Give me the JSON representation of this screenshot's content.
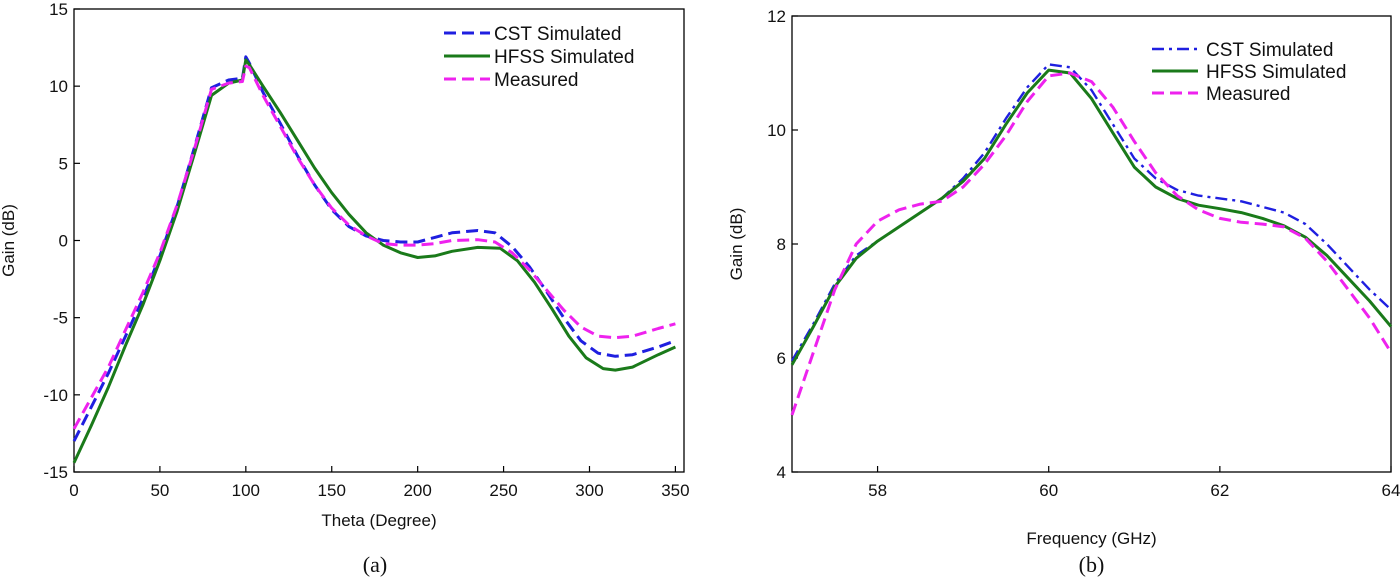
{
  "chart_data": [
    {
      "type": "line",
      "caption": "(a)",
      "xlabel": "Theta (Degree)",
      "ylabel": "Gain (dB)",
      "xlim": [
        0,
        355
      ],
      "ylim": [
        -15,
        15
      ],
      "xticks": [
        0,
        50,
        100,
        150,
        200,
        250,
        300,
        350
      ],
      "yticks": [
        -15,
        -10,
        -5,
        0,
        5,
        10,
        15
      ],
      "legend_position": "top-right",
      "series": [
        {
          "name": "CST Simulated",
          "color": "#1f1fe0",
          "style": "dashed",
          "points": [
            [
              0,
              -13.0
            ],
            [
              10,
              -10.8
            ],
            [
              20,
              -8.6
            ],
            [
              30,
              -6.2
            ],
            [
              40,
              -3.8
            ],
            [
              50,
              -1.0
            ],
            [
              60,
              2.2
            ],
            [
              70,
              6.0
            ],
            [
              80,
              9.9
            ],
            [
              90,
              10.4
            ],
            [
              97,
              10.5
            ],
            [
              98,
              10.5
            ],
            [
              100,
              11.9
            ],
            [
              102,
              11.5
            ],
            [
              110,
              9.6
            ],
            [
              120,
              7.6
            ],
            [
              130,
              5.5
            ],
            [
              140,
              3.6
            ],
            [
              150,
              2.0
            ],
            [
              160,
              0.9
            ],
            [
              170,
              0.3
            ],
            [
              180,
              0.0
            ],
            [
              190,
              -0.1
            ],
            [
              200,
              -0.1
            ],
            [
              210,
              0.2
            ],
            [
              220,
              0.5
            ],
            [
              235,
              0.65
            ],
            [
              245,
              0.5
            ],
            [
              255,
              -0.4
            ],
            [
              265,
              -1.7
            ],
            [
              275,
              -3.3
            ],
            [
              285,
              -5.0
            ],
            [
              295,
              -6.5
            ],
            [
              305,
              -7.3
            ],
            [
              315,
              -7.5
            ],
            [
              325,
              -7.4
            ],
            [
              340,
              -6.9
            ],
            [
              350,
              -6.5
            ]
          ]
        },
        {
          "name": "HFSS Simulated",
          "color": "#1a7a1a",
          "style": "solid",
          "points": [
            [
              0,
              -14.4
            ],
            [
              10,
              -12.0
            ],
            [
              20,
              -9.5
            ],
            [
              30,
              -6.8
            ],
            [
              40,
              -4.2
            ],
            [
              50,
              -1.3
            ],
            [
              60,
              1.9
            ],
            [
              70,
              5.6
            ],
            [
              80,
              9.4
            ],
            [
              90,
              10.2
            ],
            [
              98,
              10.4
            ],
            [
              100,
              11.7
            ],
            [
              102,
              11.4
            ],
            [
              110,
              10.0
            ],
            [
              120,
              8.3
            ],
            [
              130,
              6.5
            ],
            [
              140,
              4.7
            ],
            [
              150,
              3.1
            ],
            [
              160,
              1.7
            ],
            [
              170,
              0.5
            ],
            [
              180,
              -0.3
            ],
            [
              190,
              -0.8
            ],
            [
              200,
              -1.1
            ],
            [
              210,
              -1.0
            ],
            [
              220,
              -0.7
            ],
            [
              235,
              -0.45
            ],
            [
              248,
              -0.5
            ],
            [
              258,
              -1.3
            ],
            [
              268,
              -2.7
            ],
            [
              278,
              -4.4
            ],
            [
              288,
              -6.2
            ],
            [
              298,
              -7.6
            ],
            [
              308,
              -8.3
            ],
            [
              315,
              -8.4
            ],
            [
              325,
              -8.2
            ],
            [
              340,
              -7.4
            ],
            [
              350,
              -6.9
            ]
          ]
        },
        {
          "name": "Measured",
          "color": "#ee22ee",
          "style": "dashed",
          "points": [
            [
              0,
              -12.2
            ],
            [
              10,
              -10.2
            ],
            [
              20,
              -8.2
            ],
            [
              30,
              -5.8
            ],
            [
              40,
              -3.4
            ],
            [
              50,
              -0.8
            ],
            [
              60,
              2.3
            ],
            [
              70,
              5.9
            ],
            [
              80,
              9.8
            ],
            [
              90,
              10.2
            ],
            [
              98,
              10.3
            ],
            [
              100,
              11.3
            ],
            [
              102,
              11.2
            ],
            [
              110,
              9.4
            ],
            [
              120,
              7.4
            ],
            [
              130,
              5.4
            ],
            [
              140,
              3.6
            ],
            [
              150,
              2.1
            ],
            [
              160,
              1.0
            ],
            [
              170,
              0.3
            ],
            [
              180,
              -0.2
            ],
            [
              190,
              -0.3
            ],
            [
              200,
              -0.3
            ],
            [
              210,
              -0.2
            ],
            [
              220,
              0.0
            ],
            [
              235,
              0.05
            ],
            [
              245,
              -0.1
            ],
            [
              255,
              -0.8
            ],
            [
              265,
              -1.9
            ],
            [
              275,
              -3.2
            ],
            [
              285,
              -4.5
            ],
            [
              295,
              -5.6
            ],
            [
              305,
              -6.2
            ],
            [
              315,
              -6.3
            ],
            [
              325,
              -6.2
            ],
            [
              340,
              -5.7
            ],
            [
              350,
              -5.4
            ]
          ]
        }
      ]
    },
    {
      "type": "line",
      "caption": "(b)",
      "xlabel": "Frequency (GHz)",
      "ylabel": "Gain (dB)",
      "xlim": [
        57,
        64
      ],
      "ylim": [
        4,
        12
      ],
      "xticks": [
        58,
        60,
        62,
        64
      ],
      "yticks": [
        4,
        6,
        8,
        10,
        12
      ],
      "legend_position": "top-right",
      "series": [
        {
          "name": "CST Simulated",
          "color": "#1f1fe0",
          "style": "dashdot",
          "points": [
            [
              57.0,
              5.95
            ],
            [
              57.25,
              6.6
            ],
            [
              57.5,
              7.3
            ],
            [
              57.75,
              7.8
            ],
            [
              58.0,
              8.05
            ],
            [
              58.25,
              8.3
            ],
            [
              58.5,
              8.55
            ],
            [
              58.75,
              8.8
            ],
            [
              59.0,
              9.15
            ],
            [
              59.25,
              9.6
            ],
            [
              59.5,
              10.2
            ],
            [
              59.75,
              10.75
            ],
            [
              60.0,
              11.15
            ],
            [
              60.25,
              11.1
            ],
            [
              60.5,
              10.7
            ],
            [
              60.75,
              10.1
            ],
            [
              61.0,
              9.5
            ],
            [
              61.25,
              9.15
            ],
            [
              61.5,
              8.95
            ],
            [
              61.75,
              8.85
            ],
            [
              62.0,
              8.8
            ],
            [
              62.25,
              8.75
            ],
            [
              62.5,
              8.65
            ],
            [
              62.75,
              8.55
            ],
            [
              63.0,
              8.35
            ],
            [
              63.25,
              8.0
            ],
            [
              63.5,
              7.6
            ],
            [
              63.75,
              7.2
            ],
            [
              64.0,
              6.85
            ]
          ]
        },
        {
          "name": "HFSS Simulated",
          "color": "#1a7a1a",
          "style": "solid",
          "points": [
            [
              57.0,
              5.88
            ],
            [
              57.25,
              6.55
            ],
            [
              57.5,
              7.25
            ],
            [
              57.75,
              7.75
            ],
            [
              58.0,
              8.05
            ],
            [
              58.25,
              8.3
            ],
            [
              58.5,
              8.55
            ],
            [
              58.75,
              8.8
            ],
            [
              59.0,
              9.1
            ],
            [
              59.25,
              9.5
            ],
            [
              59.5,
              10.1
            ],
            [
              59.75,
              10.65
            ],
            [
              60.0,
              11.05
            ],
            [
              60.25,
              11.0
            ],
            [
              60.5,
              10.55
            ],
            [
              60.75,
              9.95
            ],
            [
              61.0,
              9.35
            ],
            [
              61.25,
              9.0
            ],
            [
              61.5,
              8.8
            ],
            [
              61.75,
              8.68
            ],
            [
              62.0,
              8.62
            ],
            [
              62.25,
              8.55
            ],
            [
              62.5,
              8.45
            ],
            [
              62.75,
              8.32
            ],
            [
              63.0,
              8.12
            ],
            [
              63.25,
              7.8
            ],
            [
              63.5,
              7.4
            ],
            [
              63.75,
              7.0
            ],
            [
              64.0,
              6.55
            ]
          ]
        },
        {
          "name": "Measured",
          "color": "#ee22ee",
          "style": "dashed",
          "points": [
            [
              57.0,
              5.0
            ],
            [
              57.25,
              6.1
            ],
            [
              57.5,
              7.2
            ],
            [
              57.75,
              8.0
            ],
            [
              58.0,
              8.4
            ],
            [
              58.25,
              8.6
            ],
            [
              58.5,
              8.7
            ],
            [
              58.75,
              8.75
            ],
            [
              59.0,
              9.0
            ],
            [
              59.25,
              9.4
            ],
            [
              59.5,
              9.9
            ],
            [
              59.75,
              10.5
            ],
            [
              60.0,
              10.95
            ],
            [
              60.25,
              11.0
            ],
            [
              60.5,
              10.85
            ],
            [
              60.75,
              10.4
            ],
            [
              61.0,
              9.8
            ],
            [
              61.25,
              9.25
            ],
            [
              61.5,
              8.85
            ],
            [
              61.75,
              8.6
            ],
            [
              62.0,
              8.45
            ],
            [
              62.25,
              8.38
            ],
            [
              62.5,
              8.35
            ],
            [
              62.75,
              8.3
            ],
            [
              63.0,
              8.1
            ],
            [
              63.25,
              7.7
            ],
            [
              63.5,
              7.2
            ],
            [
              63.75,
              6.7
            ],
            [
              64.0,
              6.1
            ]
          ]
        }
      ]
    }
  ]
}
